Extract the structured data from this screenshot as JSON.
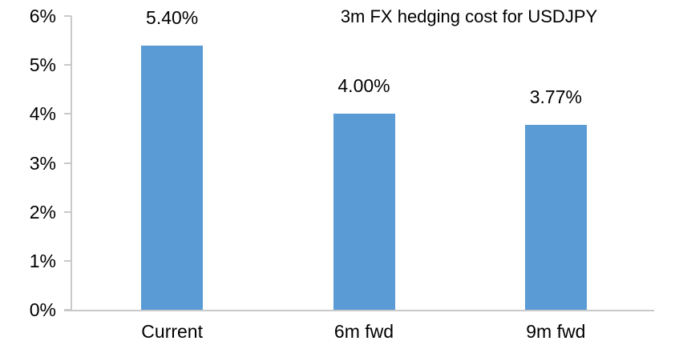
{
  "chart_data": {
    "type": "bar",
    "title": "3m FX hedging cost for USDJPY",
    "categories": [
      "Current",
      "6m fwd",
      "9m fwd"
    ],
    "values": [
      5.4,
      4.0,
      3.77
    ],
    "data_labels": [
      "5.40%",
      "4.00%",
      "3.77%"
    ],
    "y_ticks": [
      "0%",
      "1%",
      "2%",
      "3%",
      "4%",
      "5%",
      "6%"
    ],
    "ylim": [
      0,
      6
    ],
    "xlabel": "",
    "ylabel": "",
    "grid": false,
    "legend_position": "none",
    "bar_color": "#5B9BD5",
    "axis_color": "#C9C9C9",
    "text_color": "#000000",
    "background_color": "#FFFFFF"
  }
}
